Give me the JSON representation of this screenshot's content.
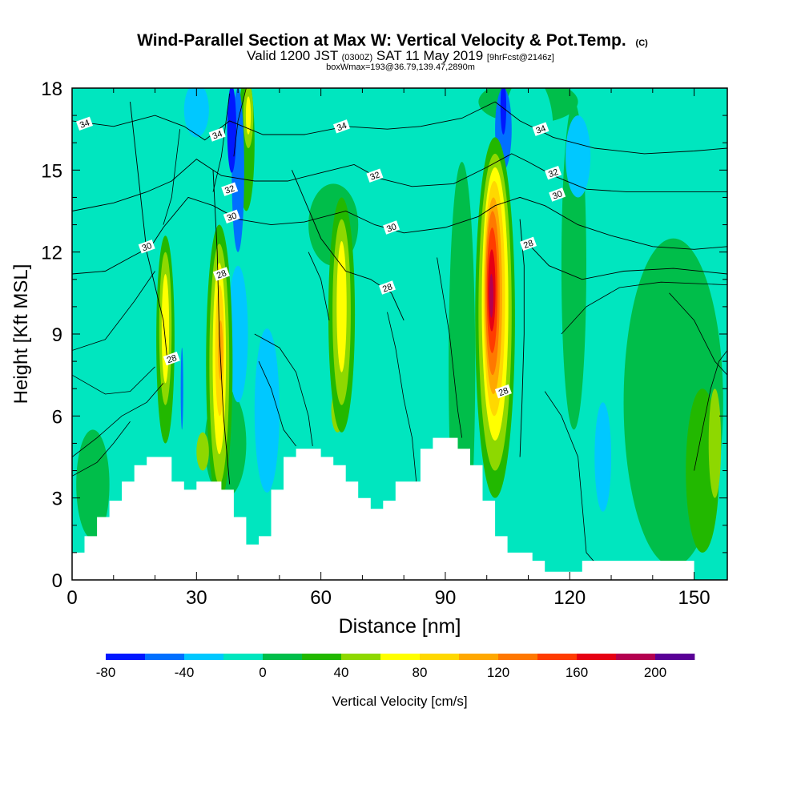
{
  "chart_data": {
    "type": "heatmap",
    "title": "Wind-Parallel Section at Max W: Vertical Velocity & Pot.Temp.",
    "title_mark": "(C)",
    "subtitle": {
      "prefix": "Valid 1200 JST",
      "utc": "(0300Z)",
      "date": "SAT 11 May 2019",
      "forecast": "[9hrFcst@2146z]"
    },
    "subtitle2": "boxWmax=193@36.79,139.47,2890m",
    "xlabel": "Distance [nm]",
    "ylabel": "Height [Kft MSL]",
    "xlim": [
      0,
      158
    ],
    "ylim": [
      0,
      18
    ],
    "x_ticks": [
      0,
      30,
      60,
      90,
      120,
      150
    ],
    "y_ticks": [
      0,
      3,
      6,
      9,
      12,
      15,
      18
    ],
    "background": "#00e6bf",
    "colorbar": {
      "label": "Vertical Velocity [cm/s]",
      "min": -80,
      "max": 220,
      "step": 20,
      "tick_values": [
        -80,
        -40,
        0,
        40,
        80,
        120,
        160,
        200
      ],
      "colors": [
        "#0018ff",
        "#0070ff",
        "#00c8ff",
        "#00e6bf",
        "#00be4a",
        "#22b800",
        "#8ed800",
        "#ffff00",
        "#ffd800",
        "#ffa800",
        "#ff7800",
        "#ff3c00",
        "#e60014",
        "#b40050",
        "#5a0096"
      ]
    },
    "w_features": [
      {
        "x": 94,
        "y": 7.8,
        "rx": 3.2,
        "ry": 7.5,
        "v": 10
      },
      {
        "x": 121,
        "y": 11.5,
        "rx": 3,
        "ry": 6,
        "v": 10
      },
      {
        "x": 145,
        "y": 6.5,
        "rx": 12,
        "ry": 6,
        "v": 10
      },
      {
        "x": 5,
        "y": 3.5,
        "rx": 4,
        "ry": 2,
        "v": 10
      },
      {
        "x": 37,
        "y": 5,
        "rx": 5,
        "ry": 2,
        "v": 10
      },
      {
        "x": 152,
        "y": 4,
        "rx": 4,
        "ry": 3,
        "v": 30
      },
      {
        "x": 155,
        "y": 5,
        "rx": 1.5,
        "ry": 2,
        "v": 50
      },
      {
        "x": 42,
        "y": 16,
        "rx": 2,
        "ry": 2.5,
        "v": 30
      },
      {
        "x": 110,
        "y": 17.5,
        "rx": 12,
        "ry": 0.8,
        "v": 10
      },
      {
        "x": 63,
        "y": 13,
        "rx": 6,
        "ry": 1.5,
        "v": 10
      },
      {
        "x": 4,
        "y": 16.5,
        "rx": 2,
        "ry": 1.5,
        "v": -10
      },
      {
        "x": 40,
        "y": 9,
        "rx": 2.4,
        "ry": 2.5,
        "v": -30
      },
      {
        "x": 47,
        "y": 6.2,
        "rx": 3,
        "ry": 3,
        "v": -30
      },
      {
        "x": 128,
        "y": 4.5,
        "rx": 2,
        "ry": 2,
        "v": -30
      },
      {
        "x": 110,
        "y": 16.5,
        "rx": 6,
        "ry": 2,
        "v": -10
      },
      {
        "x": 122,
        "y": 15.5,
        "rx": 3,
        "ry": 1.5,
        "v": -30
      },
      {
        "x": 40,
        "y": 15,
        "rx": 1.5,
        "ry": 3,
        "v": -50
      },
      {
        "x": 38.5,
        "y": 16.5,
        "rx": 1.1,
        "ry": 1.6,
        "v": -70
      },
      {
        "x": 30,
        "y": 17.2,
        "rx": 3,
        "ry": 1,
        "v": -30
      },
      {
        "x": 104,
        "y": 16.5,
        "rx": 2,
        "ry": 1.5,
        "v": -50
      },
      {
        "x": 104,
        "y": 17.3,
        "rx": 0.7,
        "ry": 1,
        "v": -70
      },
      {
        "x": 26.5,
        "y": 7,
        "rx": 0.3,
        "ry": 1.5,
        "v": -50
      },
      {
        "x": 22.5,
        "y": 8.8,
        "rx": 2.2,
        "ry": 3.8,
        "v": 30
      },
      {
        "x": 22.5,
        "y": 9.2,
        "rx": 1.5,
        "ry": 2.8,
        "v": 50
      },
      {
        "x": 22.5,
        "y": 9.2,
        "rx": 0.9,
        "ry": 2.0,
        "v": 70
      },
      {
        "x": 35.5,
        "y": 7.9,
        "rx": 3.2,
        "ry": 5.1,
        "v": 30
      },
      {
        "x": 35.5,
        "y": 7.9,
        "rx": 2.4,
        "ry": 4.4,
        "v": 50
      },
      {
        "x": 35.5,
        "y": 8.1,
        "rx": 1.6,
        "ry": 3.5,
        "v": 70
      },
      {
        "x": 35.6,
        "y": 8.4,
        "rx": 1.1,
        "ry": 2.4,
        "v": 90
      },
      {
        "x": 35.8,
        "y": 8.4,
        "rx": 0.6,
        "ry": 1.1,
        "v": 110
      },
      {
        "x": 42.5,
        "y": 17,
        "rx": 1.2,
        "ry": 1.2,
        "v": 50
      },
      {
        "x": 42.5,
        "y": 17,
        "rx": 0.6,
        "ry": 0.7,
        "v": 70
      },
      {
        "x": 31.5,
        "y": 4.7,
        "rx": 1.5,
        "ry": 0.7,
        "v": 50
      },
      {
        "x": 64,
        "y": 6.2,
        "rx": 1.5,
        "ry": 0.8,
        "v": 50
      },
      {
        "x": 65,
        "y": 9.7,
        "rx": 3.2,
        "ry": 4.3,
        "v": 30
      },
      {
        "x": 65,
        "y": 9.8,
        "rx": 2.2,
        "ry": 3.4,
        "v": 50
      },
      {
        "x": 65,
        "y": 10.0,
        "rx": 1.2,
        "ry": 2.4,
        "v": 70
      },
      {
        "x": 102,
        "y": 9.6,
        "rx": 4.8,
        "ry": 6.6,
        "v": 30
      },
      {
        "x": 102,
        "y": 9.8,
        "rx": 4.0,
        "ry": 5.8,
        "v": 50
      },
      {
        "x": 102,
        "y": 10.1,
        "rx": 3.2,
        "ry": 5.0,
        "v": 70
      },
      {
        "x": 101.8,
        "y": 10.3,
        "rx": 2.6,
        "ry": 4.3,
        "v": 90
      },
      {
        "x": 101.6,
        "y": 10.4,
        "rx": 2.1,
        "ry": 3.6,
        "v": 110
      },
      {
        "x": 101.4,
        "y": 10.5,
        "rx": 1.7,
        "ry": 3.0,
        "v": 130
      },
      {
        "x": 101.3,
        "y": 10.6,
        "rx": 1.3,
        "ry": 2.3,
        "v": 150
      },
      {
        "x": 101.2,
        "y": 10.6,
        "rx": 0.9,
        "ry": 1.5,
        "v": 170
      },
      {
        "x": 101.1,
        "y": 10.4,
        "rx": 0.5,
        "ry": 0.8,
        "v": 190
      }
    ],
    "terrain": [
      [
        0,
        1
      ],
      [
        3,
        1
      ],
      [
        3,
        1.6
      ],
      [
        6,
        1.6
      ],
      [
        6,
        2.3
      ],
      [
        9,
        2.3
      ],
      [
        9,
        2.9
      ],
      [
        12,
        2.9
      ],
      [
        12,
        3.6
      ],
      [
        15,
        3.6
      ],
      [
        15,
        4.2
      ],
      [
        18,
        4.2
      ],
      [
        18,
        4.5
      ],
      [
        24,
        4.5
      ],
      [
        24,
        3.6
      ],
      [
        27,
        3.6
      ],
      [
        27,
        3.3
      ],
      [
        30,
        3.3
      ],
      [
        30,
        3.6
      ],
      [
        36,
        3.6
      ],
      [
        36,
        3.3
      ],
      [
        39,
        3.3
      ],
      [
        39,
        2.3
      ],
      [
        42,
        2.3
      ],
      [
        42,
        1.3
      ],
      [
        45,
        1.3
      ],
      [
        45,
        1.6
      ],
      [
        48,
        1.6
      ],
      [
        48,
        3.3
      ],
      [
        51,
        3.3
      ],
      [
        51,
        4.5
      ],
      [
        54,
        4.5
      ],
      [
        54,
        4.8
      ],
      [
        60,
        4.8
      ],
      [
        60,
        4.5
      ],
      [
        63,
        4.5
      ],
      [
        63,
        4.2
      ],
      [
        66,
        4.2
      ],
      [
        66,
        3.6
      ],
      [
        69,
        3.6
      ],
      [
        69,
        3
      ],
      [
        72,
        3
      ],
      [
        72,
        2.6
      ],
      [
        75,
        2.6
      ],
      [
        75,
        2.9
      ],
      [
        78,
        2.9
      ],
      [
        78,
        3.6
      ],
      [
        84,
        3.6
      ],
      [
        84,
        4.8
      ],
      [
        87,
        4.8
      ],
      [
        87,
        5.2
      ],
      [
        93,
        5.2
      ],
      [
        93,
        4.8
      ],
      [
        96,
        4.8
      ],
      [
        96,
        4.2
      ],
      [
        99,
        4.2
      ],
      [
        99,
        2.9
      ],
      [
        102,
        2.9
      ],
      [
        102,
        1.6
      ],
      [
        105,
        1.6
      ],
      [
        105,
        1
      ],
      [
        111,
        1
      ],
      [
        111,
        0.7
      ],
      [
        114,
        0.7
      ],
      [
        114,
        0.3
      ],
      [
        123,
        0.3
      ],
      [
        123,
        0.7
      ],
      [
        150,
        0.7
      ],
      [
        150,
        0
      ],
      [
        0,
        0
      ]
    ],
    "theta_contours": [
      {
        "label": "28",
        "points": [
          [
            14,
            17.5
          ],
          [
            18,
            12
          ],
          [
            22,
            9.5
          ],
          [
            23,
            8
          ]
        ]
      },
      {
        "label": "28",
        "points": [
          [
            34,
            15
          ],
          [
            35,
            12
          ],
          [
            35.5,
            9
          ],
          [
            36.5,
            6
          ],
          [
            38,
            3.5
          ]
        ]
      },
      {
        "label": "28",
        "points": [
          [
            53,
            15
          ],
          [
            60,
            12.5
          ],
          [
            66,
            11.3
          ],
          [
            72,
            11
          ],
          [
            77,
            10.5
          ],
          [
            80,
            9.5
          ]
        ]
      },
      {
        "label": "28",
        "points": [
          [
            108,
            13.2
          ],
          [
            109,
            11.5
          ],
          [
            109,
            9
          ],
          [
            108.5,
            6.5
          ],
          [
            108,
            4.5
          ]
        ]
      },
      {
        "label": "28",
        "points": [
          [
            110,
            12.3
          ],
          [
            115,
            11.5
          ],
          [
            123,
            11
          ],
          [
            133,
            11.3
          ],
          [
            145,
            11.4
          ],
          [
            158,
            11.2
          ]
        ]
      },
      {
        "label": "30",
        "points": [
          [
            0,
            11.2
          ],
          [
            8,
            11.3
          ],
          [
            14,
            11.8
          ],
          [
            19,
            12.2
          ],
          [
            22,
            12.9
          ],
          [
            28,
            14
          ],
          [
            34,
            13.7
          ],
          [
            40,
            13.2
          ],
          [
            48,
            13
          ],
          [
            56,
            13.1
          ],
          [
            66,
            13.5
          ],
          [
            73,
            13
          ],
          [
            80,
            12.7
          ],
          [
            90,
            12.9
          ],
          [
            98,
            13.3
          ],
          [
            102,
            13.7
          ],
          [
            108,
            14
          ],
          [
            114,
            13.7
          ],
          [
            122,
            13
          ],
          [
            130,
            12.6
          ],
          [
            140,
            12.2
          ],
          [
            150,
            12.1
          ],
          [
            158,
            12.2
          ]
        ]
      },
      {
        "label": "32",
        "points": [
          [
            0,
            13.5
          ],
          [
            10,
            13.8
          ],
          [
            18,
            14.2
          ],
          [
            24,
            14.6
          ],
          [
            30,
            15.4
          ],
          [
            36,
            14.8
          ],
          [
            44,
            14.6
          ],
          [
            52,
            14.6
          ],
          [
            60,
            14.9
          ],
          [
            68,
            15.2
          ],
          [
            74,
            14.7
          ],
          [
            82,
            14.4
          ],
          [
            92,
            14.5
          ],
          [
            100,
            15.1
          ],
          [
            106,
            15.6
          ],
          [
            110,
            15.3
          ],
          [
            116,
            14.8
          ],
          [
            124,
            14.3
          ],
          [
            134,
            14.2
          ],
          [
            146,
            14.2
          ],
          [
            158,
            14.2
          ]
        ]
      },
      {
        "label": "34",
        "points": [
          [
            0,
            16.8
          ],
          [
            10,
            16.6
          ],
          [
            20,
            17
          ],
          [
            27,
            16.6
          ],
          [
            32,
            16.1
          ],
          [
            38,
            16.8
          ],
          [
            46,
            16.3
          ],
          [
            56,
            16.3
          ],
          [
            66,
            16.6
          ],
          [
            76,
            16.5
          ],
          [
            84,
            16.6
          ],
          [
            94,
            16.9
          ],
          [
            102,
            17.5
          ],
          [
            108,
            16.8
          ],
          [
            116,
            16.2
          ],
          [
            126,
            15.8
          ],
          [
            138,
            15.6
          ],
          [
            150,
            15.7
          ],
          [
            158,
            15.8
          ]
        ]
      }
    ],
    "theta_labels": [
      {
        "x": 3,
        "y": 16.7,
        "text": "34"
      },
      {
        "x": 35,
        "y": 16.3,
        "text": "34"
      },
      {
        "x": 65,
        "y": 16.6,
        "text": "34"
      },
      {
        "x": 113,
        "y": 16.5,
        "text": "34"
      },
      {
        "x": 73,
        "y": 14.8,
        "text": "32"
      },
      {
        "x": 38,
        "y": 14.3,
        "text": "32"
      },
      {
        "x": 116,
        "y": 14.9,
        "text": "32"
      },
      {
        "x": 18,
        "y": 12.2,
        "text": "30"
      },
      {
        "x": 38.5,
        "y": 13.3,
        "text": "30"
      },
      {
        "x": 77,
        "y": 12.9,
        "text": "30"
      },
      {
        "x": 117,
        "y": 14.1,
        "text": "30"
      },
      {
        "x": 36,
        "y": 11.2,
        "text": "28"
      },
      {
        "x": 24,
        "y": 8.1,
        "text": "28"
      },
      {
        "x": 76,
        "y": 10.7,
        "text": "28"
      },
      {
        "x": 110,
        "y": 12.3,
        "text": "28"
      },
      {
        "x": 104,
        "y": 6.9,
        "text": "28"
      }
    ],
    "minor_contours": [
      [
        [
          0,
          4.5
        ],
        [
          6,
          5.2
        ],
        [
          12,
          6
        ],
        [
          18,
          6.5
        ],
        [
          22,
          7.2
        ]
      ],
      [
        [
          0,
          3.8
        ],
        [
          6,
          4.3
        ],
        [
          10,
          5
        ],
        [
          14,
          5.8
        ]
      ],
      [
        [
          0,
          7.5
        ],
        [
          8,
          6.8
        ],
        [
          14,
          6.9
        ],
        [
          20,
          7.8
        ]
      ],
      [
        [
          0,
          8.4
        ],
        [
          8,
          8.8
        ],
        [
          15,
          10.2
        ],
        [
          20,
          11.3
        ]
      ],
      [
        [
          45,
          8
        ],
        [
          48,
          7
        ],
        [
          51,
          5.5
        ],
        [
          54,
          4.9
        ]
      ],
      [
        [
          44,
          9
        ],
        [
          50,
          8.5
        ],
        [
          54,
          7.6
        ],
        [
          57,
          6
        ],
        [
          58,
          4.9
        ]
      ],
      [
        [
          76,
          9.8
        ],
        [
          78,
          8.5
        ],
        [
          80,
          6.6
        ],
        [
          82,
          5.2
        ],
        [
          83,
          3.6
        ]
      ],
      [
        [
          88,
          11.8
        ],
        [
          91,
          9
        ],
        [
          93,
          6.2
        ],
        [
          94,
          5.2
        ]
      ],
      [
        [
          114,
          6.9
        ],
        [
          118,
          6
        ],
        [
          122,
          4.5
        ],
        [
          124,
          1
        ],
        [
          128,
          0.3
        ]
      ],
      [
        [
          118,
          9
        ],
        [
          124,
          10
        ],
        [
          132,
          10.7
        ],
        [
          142,
          10.9
        ],
        [
          158,
          10.8
        ]
      ],
      [
        [
          144,
          10.5
        ],
        [
          150,
          9.5
        ],
        [
          155,
          8
        ],
        [
          158,
          7.5
        ]
      ],
      [
        [
          150,
          4
        ],
        [
          152,
          5.5
        ],
        [
          154,
          7
        ],
        [
          156,
          8
        ],
        [
          158,
          8.4
        ]
      ],
      [
        [
          57,
          12
        ],
        [
          60,
          11
        ],
        [
          62,
          9.5
        ]
      ],
      [
        [
          26,
          16.5
        ],
        [
          24,
          14
        ],
        [
          22,
          13
        ]
      ],
      [
        [
          38,
          17.8
        ],
        [
          36,
          15.5
        ],
        [
          34,
          14.2
        ]
      ],
      [
        [
          42,
          18
        ],
        [
          40,
          16.8
        ],
        [
          39,
          15.5
        ]
      ]
    ]
  }
}
